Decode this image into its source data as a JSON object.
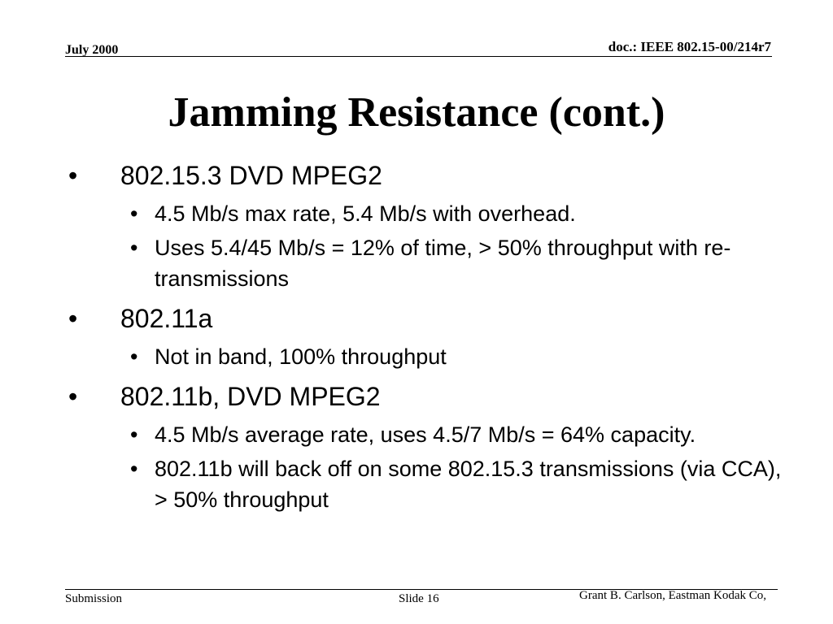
{
  "header": {
    "date": "July 2000",
    "doc_id": "doc.: IEEE 802.15-00/214r7"
  },
  "title": "Jamming Resistance (cont.)",
  "bullets": [
    {
      "text": "802.15.3 DVD MPEG2",
      "sub": [
        "4.5 Mb/s max rate, 5.4 Mb/s with overhead.",
        "Uses 5.4/45 Mb/s = 12% of time, > 50% throughput with re-transmissions"
      ]
    },
    {
      "text": "802.11a",
      "sub": [
        "Not in band, 100% throughput"
      ]
    },
    {
      "text": "802.11b, DVD MPEG2",
      "sub": [
        "4.5 Mb/s average rate, uses 4.5/7 Mb/s = 64% capacity.",
        "802.11b will back  off on some 802.15.3 transmissions (via CCA), > 50% throughput"
      ]
    }
  ],
  "footer": {
    "left": "Submission",
    "center": "Slide 16",
    "right": "Grant B. Carlson, Eastman Kodak Co,"
  }
}
